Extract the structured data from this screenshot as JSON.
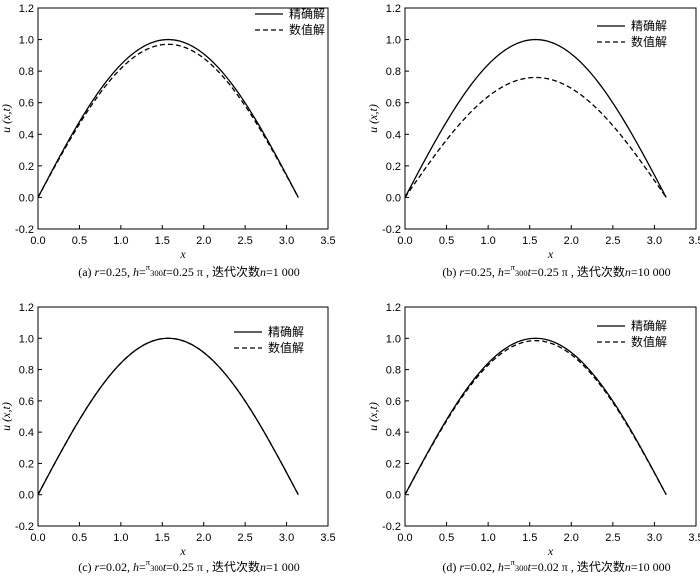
{
  "chart_data": [
    {
      "id": "a",
      "type": "line",
      "xlabel": "x",
      "ylabel": "u (x,t)",
      "xlim": [
        0,
        3.5
      ],
      "ylim": [
        -0.2,
        1.2
      ],
      "xticks": [
        "0.0",
        "0.5",
        "1.0",
        "1.5",
        "2.0",
        "2.5",
        "3.0",
        "3.5"
      ],
      "yticks": [
        "-0.2",
        "0.0",
        "0.2",
        "0.4",
        "0.6",
        "0.8",
        "1.0",
        "1.2"
      ],
      "grid": false,
      "legend": "top-right",
      "series": [
        {
          "name": "精确解",
          "style": "solid",
          "function": "sin",
          "amplitude": 1.0,
          "x_range": [
            0,
            3.1416
          ]
        },
        {
          "name": "数值解",
          "style": "dashed",
          "function": "sin",
          "amplitude": 0.97,
          "x_range": [
            0,
            3.1416
          ]
        }
      ],
      "caption": {
        "label": "(a) ",
        "r_sym": "r",
        "r_val": "=0.25, ",
        "h_sym": "h",
        "h_eq": "=",
        "h_num": "π",
        "h_den": "300",
        "t_sym": "t",
        "t_val": "=0.25 π , ",
        "iter_label": "迭代次数",
        "n_sym": "n",
        "n_val": "=1 000"
      }
    },
    {
      "id": "b",
      "type": "line",
      "xlabel": "x",
      "ylabel": "u (x,t)",
      "xlim": [
        0,
        3.5
      ],
      "ylim": [
        -0.2,
        1.2
      ],
      "xticks": [
        "0.0",
        "0.5",
        "1.0",
        "1.5",
        "2.0",
        "2.5",
        "3.0",
        "3.5"
      ],
      "yticks": [
        "-0.2",
        "0.0",
        "0.2",
        "0.4",
        "0.6",
        "0.8",
        "1.0",
        "1.2"
      ],
      "grid": false,
      "legend": "top-right",
      "series": [
        {
          "name": "精确解",
          "style": "solid",
          "function": "sin",
          "amplitude": 1.0,
          "x_range": [
            0,
            3.1416
          ]
        },
        {
          "name": "数值解",
          "style": "dashed",
          "function": "sin",
          "amplitude": 0.76,
          "x_range": [
            0,
            3.1416
          ]
        }
      ],
      "caption": {
        "label": "(b) ",
        "r_sym": "r",
        "r_val": "=0.25, ",
        "h_sym": "h",
        "h_eq": "=",
        "h_num": "π",
        "h_den": "300",
        "t_sym": "t",
        "t_val": "=0.25 π , ",
        "iter_label": "迭代次数",
        "n_sym": "n",
        "n_val": "=10 000"
      }
    },
    {
      "id": "c",
      "type": "line",
      "xlabel": "x",
      "ylabel": "u (x,t)",
      "xlim": [
        0,
        3.5
      ],
      "ylim": [
        -0.2,
        1.2
      ],
      "xticks": [
        "0.0",
        "0.5",
        "1.0",
        "1.5",
        "2.0",
        "2.5",
        "3.0",
        "3.5"
      ],
      "yticks": [
        "-0.2",
        "0.0",
        "0.2",
        "0.4",
        "0.6",
        "0.8",
        "1.0",
        "1.2"
      ],
      "grid": false,
      "legend": "top-right",
      "series": [
        {
          "name": "精确解",
          "style": "solid",
          "function": "sin",
          "amplitude": 1.0,
          "x_range": [
            0,
            3.1416
          ]
        },
        {
          "name": "数值解",
          "style": "dashed",
          "function": "sin",
          "amplitude": 1.0,
          "x_range": [
            0,
            3.1416
          ]
        }
      ],
      "caption": {
        "label": "(c) ",
        "r_sym": "r",
        "r_val": "=0.02, ",
        "h_sym": "h",
        "h_eq": "=",
        "h_num": "π",
        "h_den": "300",
        "t_sym": "t",
        "t_val": "=0.25 π , ",
        "iter_label": "迭代次数",
        "n_sym": "n",
        "n_val": "=1 000"
      }
    },
    {
      "id": "d",
      "type": "line",
      "xlabel": "x",
      "ylabel": "u (x,t)",
      "xlim": [
        0,
        3.5
      ],
      "ylim": [
        -0.2,
        1.2
      ],
      "xticks": [
        "0.0",
        "0.5",
        "1.0",
        "1.5",
        "2.0",
        "2.5",
        "3.0",
        "3.5"
      ],
      "yticks": [
        "-0.2",
        "0.0",
        "0.2",
        "0.4",
        "0.6",
        "0.8",
        "1.0",
        "1.2"
      ],
      "grid": false,
      "legend": "top-right",
      "series": [
        {
          "name": "精确解",
          "style": "solid",
          "function": "sin",
          "amplitude": 1.0,
          "x_range": [
            0,
            3.1416
          ]
        },
        {
          "name": "数值解",
          "style": "dashed",
          "function": "sin",
          "amplitude": 0.985,
          "x_range": [
            0,
            3.1416
          ]
        }
      ],
      "caption": {
        "label": "(d) ",
        "r_sym": "r",
        "r_val": "=0.02, ",
        "h_sym": "h",
        "h_eq": "=",
        "h_num": "π",
        "h_den": "300",
        "t_sym": "t",
        "t_val": "=0.02 π , ",
        "iter_label": "迭代次数",
        "n_sym": "n",
        "n_val": "=10 000"
      }
    }
  ],
  "colors": {
    "line": "#000000",
    "background": "#ffffff"
  }
}
